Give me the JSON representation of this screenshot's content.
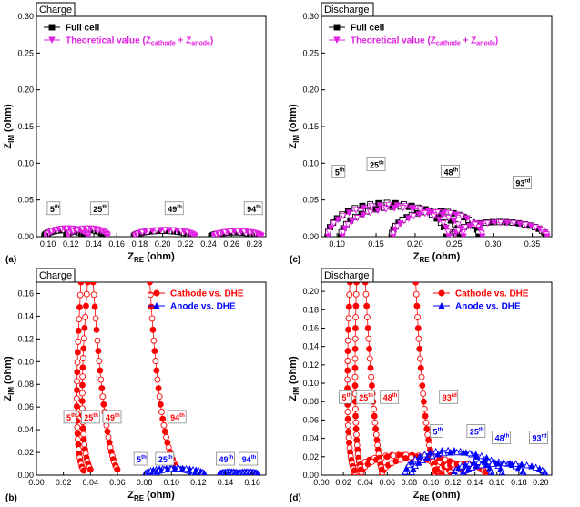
{
  "chart_data": [
    {
      "id": "a",
      "panel_label": "(a)",
      "title": "Charge",
      "type": "scatter",
      "xlabel": "Z",
      "xlabel_sub": "RE",
      "xlabel_unit": " (ohm)",
      "ylabel": "Z",
      "ylabel_sub": "IM",
      "ylabel_unit": " (ohm)",
      "xlim": [
        0.09,
        0.29
      ],
      "ylim": [
        0.0,
        0.3
      ],
      "xticks": [
        0.1,
        0.12,
        0.14,
        0.16,
        0.18,
        0.2,
        0.22,
        0.24,
        0.26,
        0.28
      ],
      "xtick_labels": [
        "0.10",
        "0.12",
        "0.14",
        "0.16",
        "0.18",
        "0.20",
        "0.22",
        "0.24",
        "0.26",
        "0.28"
      ],
      "yticks": [
        0.0,
        0.05,
        0.1,
        0.15,
        0.2,
        0.25,
        0.3
      ],
      "ytick_labels": [
        "0.00",
        "0.05",
        "0.10",
        "0.15",
        "0.20",
        "0.25",
        "0.30"
      ],
      "legend": [
        {
          "label": "Full cell",
          "color": "#000000",
          "marker": "square"
        },
        {
          "label_main": "Theoretical value (Z",
          "label_sub1": "cathode",
          "label_mid": " + Z",
          "label_sub2": "anode",
          "label_end": ")",
          "color": "#e020e0",
          "marker": "triangle-down"
        }
      ],
      "series": [
        {
          "name": "Full cell",
          "color": "#000000",
          "arcs": [
            [
              0.097,
              0.132,
              0.009
            ],
            [
              0.116,
              0.149,
              0.01
            ],
            [
              0.175,
              0.225,
              0.008
            ],
            [
              0.243,
              0.283,
              0.006
            ]
          ]
        },
        {
          "name": "Theoretical value",
          "color": "#e020e0",
          "arcs": [
            [
              0.099,
              0.135,
              0.011
            ],
            [
              0.118,
              0.152,
              0.011
            ],
            [
              0.176,
              0.228,
              0.009
            ],
            [
              0.245,
              0.286,
              0.007
            ]
          ]
        }
      ],
      "annotations": [
        {
          "base": "5",
          "sup": "th",
          "x": 0.105,
          "y": 0.035
        },
        {
          "base": "25",
          "sup": "th",
          "x": 0.145,
          "y": 0.035
        },
        {
          "base": "49",
          "sup": "th",
          "x": 0.21,
          "y": 0.035
        },
        {
          "base": "94",
          "sup": "th",
          "x": 0.279,
          "y": 0.035
        }
      ]
    },
    {
      "id": "c",
      "panel_label": "(c)",
      "title": "Discharge",
      "type": "scatter",
      "xlabel": "Z",
      "xlabel_sub": "RE",
      "xlabel_unit": " (ohm)",
      "ylabel": "Z",
      "ylabel_sub": "IM",
      "ylabel_unit": " (ohm)",
      "xlim": [
        0.08,
        0.375
      ],
      "ylim": [
        0.0,
        0.3
      ],
      "xticks": [
        0.1,
        0.15,
        0.2,
        0.25,
        0.3,
        0.35
      ],
      "xtick_labels": [
        "0.10",
        "0.15",
        "0.20",
        "0.25",
        "0.30",
        "0.35"
      ],
      "yticks": [
        0.0,
        0.05,
        0.1,
        0.15,
        0.2,
        0.25,
        0.3
      ],
      "ytick_labels": [
        "0.00",
        "0.05",
        "0.10",
        "0.15",
        "0.20",
        "0.25",
        "0.30"
      ],
      "legend": [
        {
          "label": "Full cell",
          "color": "#000000",
          "marker": "square"
        },
        {
          "label_main": "Theoretical value (Z",
          "label_sub1": "cathode",
          "label_mid": " + Z",
          "label_sub2": "anode",
          "label_end": ")",
          "color": "#e020e0",
          "marker": "triangle-down"
        }
      ],
      "series": [
        {
          "name": "Full cell",
          "color": "#000000",
          "arcs": [
            [
              0.088,
              0.24,
              0.046
            ],
            [
              0.105,
              0.258,
              0.041
            ],
            [
              0.17,
              0.282,
              0.035
            ],
            [
              0.248,
              0.368,
              0.02
            ]
          ]
        },
        {
          "name": "Theoretical value",
          "color": "#e020e0",
          "arcs": [
            [
              0.089,
              0.243,
              0.043
            ],
            [
              0.107,
              0.262,
              0.039
            ],
            [
              0.172,
              0.286,
              0.033
            ],
            [
              0.25,
              0.369,
              0.019
            ]
          ]
        }
      ],
      "annotations": [
        {
          "base": "5",
          "sup": "th",
          "x": 0.102,
          "y": 0.085
        },
        {
          "base": "25",
          "sup": "th",
          "x": 0.15,
          "y": 0.095
        },
        {
          "base": "48",
          "sup": "th",
          "x": 0.245,
          "y": 0.085
        },
        {
          "base": "93",
          "sup": "rd",
          "x": 0.337,
          "y": 0.07
        }
      ]
    },
    {
      "id": "b",
      "panel_label": "(b)",
      "title": "Charge",
      "type": "scatter",
      "xlabel": "Z",
      "xlabel_sub": "RE",
      "xlabel_unit": " (ohm)",
      "ylabel": "Z",
      "ylabel_sub": "IM",
      "ylabel_unit": " (ohm)",
      "xlim": [
        0.0,
        0.17
      ],
      "ylim": [
        0.0,
        0.17
      ],
      "xticks": [
        0.0,
        0.02,
        0.04,
        0.06,
        0.08,
        0.1,
        0.12,
        0.14,
        0.16
      ],
      "xtick_labels": [
        "0.00",
        "0.02",
        "0.04",
        "0.06",
        "0.08",
        "0.10",
        "0.12",
        "0.14",
        "0.16"
      ],
      "yticks": [
        0.0,
        0.02,
        0.04,
        0.06,
        0.08,
        0.1,
        0.12,
        0.14,
        0.16
      ],
      "ytick_labels": [
        "0.00",
        "0.02",
        "0.04",
        "0.06",
        "0.08",
        "0.10",
        "0.12",
        "0.14",
        "0.16"
      ],
      "legend": [
        {
          "label": "Cathode vs. DHE",
          "color": "#ff0000",
          "marker": "circle"
        },
        {
          "label": "Anode vs. DHE",
          "color": "#0000ff",
          "marker": "triangle"
        }
      ],
      "series": [
        {
          "name": "Cathode vs. DHE",
          "color": "#ff0000",
          "tails": [
            [
              0.033,
              0.17,
              0.026,
              0.035,
              0.035,
              0.004
            ],
            [
              0.038,
              0.17,
              0.029,
              0.05,
              0.04,
              0.005
            ],
            [
              0.042,
              0.17,
              0.05,
              0.04,
              0.06,
              0.005
            ],
            [
              0.084,
              0.17,
              0.091,
              0.04,
              0.105,
              0.005
            ]
          ]
        },
        {
          "name": "Anode vs. DHE",
          "color": "#0000ff",
          "arcs": [
            [
              0.08,
              0.118,
              0.006
            ],
            [
              0.086,
              0.125,
              0.006
            ],
            [
              0.135,
              0.152,
              0.003
            ],
            [
              0.148,
              0.165,
              0.003
            ]
          ]
        }
      ],
      "annotations": [
        {
          "base": "5",
          "sup": "th",
          "x": 0.025,
          "y": 0.049,
          "color": "#ff0000"
        },
        {
          "base": "25",
          "sup": "th",
          "x": 0.04,
          "y": 0.049,
          "color": "#ff0000"
        },
        {
          "base": "49",
          "sup": "th",
          "x": 0.056,
          "y": 0.049,
          "color": "#ff0000"
        },
        {
          "base": "94",
          "sup": "th",
          "x": 0.104,
          "y": 0.049,
          "color": "#ff0000"
        },
        {
          "base": "5",
          "sup": "th",
          "x": 0.077,
          "y": 0.012,
          "color": "#0000ff"
        },
        {
          "base": "25",
          "sup": "th",
          "x": 0.095,
          "y": 0.012,
          "color": "#0000ff"
        },
        {
          "base": "49",
          "sup": "th",
          "x": 0.14,
          "y": 0.012,
          "color": "#0000ff"
        },
        {
          "base": "94",
          "sup": "th",
          "x": 0.157,
          "y": 0.012,
          "color": "#0000ff"
        }
      ]
    },
    {
      "id": "d",
      "panel_label": "(d)",
      "title": "Discharge",
      "type": "scatter",
      "xlabel": "Z",
      "xlabel_sub": "RE",
      "xlabel_unit": " (ohm)",
      "ylabel": "Z",
      "ylabel_sub": "IM",
      "ylabel_unit": " (ohm)",
      "xlim": [
        0.0,
        0.21
      ],
      "ylim": [
        0.0,
        0.21
      ],
      "xticks": [
        0.0,
        0.02,
        0.04,
        0.06,
        0.08,
        0.1,
        0.12,
        0.14,
        0.16,
        0.18,
        0.2
      ],
      "xtick_labels": [
        "0.00",
        "0.02",
        "0.04",
        "0.06",
        "0.08",
        "0.10",
        "0.12",
        "0.14",
        "0.16",
        "0.18",
        "0.20"
      ],
      "yticks": [
        0.0,
        0.02,
        0.04,
        0.06,
        0.08,
        0.1,
        0.12,
        0.14,
        0.16,
        0.18,
        0.2
      ],
      "ytick_labels": [
        "0.00",
        "0.02",
        "0.04",
        "0.06",
        "0.08",
        "0.10",
        "0.12",
        "0.14",
        "0.16",
        "0.18",
        "0.20"
      ],
      "legend": [
        {
          "label": "Cathode vs. DHE",
          "color": "#ff0000",
          "marker": "circle"
        },
        {
          "label": "Anode vs. DHE",
          "color": "#0000ff",
          "marker": "triangle"
        }
      ],
      "series": [
        {
          "name": "Cathode vs. DHE",
          "color": "#ff0000",
          "tails": [
            [
              0.026,
              0.21,
              0.02,
              0.05,
              0.03,
              0.005
            ],
            [
              0.032,
              0.21,
              0.028,
              0.06,
              0.036,
              0.006
            ],
            [
              0.04,
              0.21,
              0.048,
              0.06,
              0.055,
              0.006
            ],
            [
              0.086,
              0.21,
              0.093,
              0.06,
              0.104,
              0.006
            ]
          ],
          "arcs": [
            [
              0.03,
              0.11,
              0.022
            ],
            [
              0.036,
              0.118,
              0.022
            ],
            [
              0.055,
              0.13,
              0.02
            ],
            [
              0.104,
              0.15,
              0.012
            ]
          ]
        },
        {
          "name": "Anode vs. DHE",
          "color": "#0000ff",
          "arcs": [
            [
              0.076,
              0.155,
              0.027
            ],
            [
              0.082,
              0.165,
              0.025
            ],
            [
              0.12,
              0.185,
              0.015
            ],
            [
              0.128,
              0.205,
              0.013
            ]
          ]
        }
      ],
      "annotations": [
        {
          "base": "5",
          "sup": "th",
          "x": 0.022,
          "y": 0.082,
          "color": "#ff0000"
        },
        {
          "base": "25",
          "sup": "th",
          "x": 0.04,
          "y": 0.082,
          "color": "#ff0000"
        },
        {
          "base": "48",
          "sup": "th",
          "x": 0.062,
          "y": 0.082,
          "color": "#ff0000"
        },
        {
          "base": "93",
          "sup": "rd",
          "x": 0.116,
          "y": 0.082,
          "color": "#ff0000"
        },
        {
          "base": "5",
          "sup": "th",
          "x": 0.105,
          "y": 0.045,
          "color": "#0000ff"
        },
        {
          "base": "25",
          "sup": "th",
          "x": 0.141,
          "y": 0.045,
          "color": "#0000ff"
        },
        {
          "base": "48",
          "sup": "th",
          "x": 0.164,
          "y": 0.038,
          "color": "#0000ff"
        },
        {
          "base": "93",
          "sup": "rd",
          "x": 0.198,
          "y": 0.038,
          "color": "#0000ff"
        }
      ]
    }
  ]
}
